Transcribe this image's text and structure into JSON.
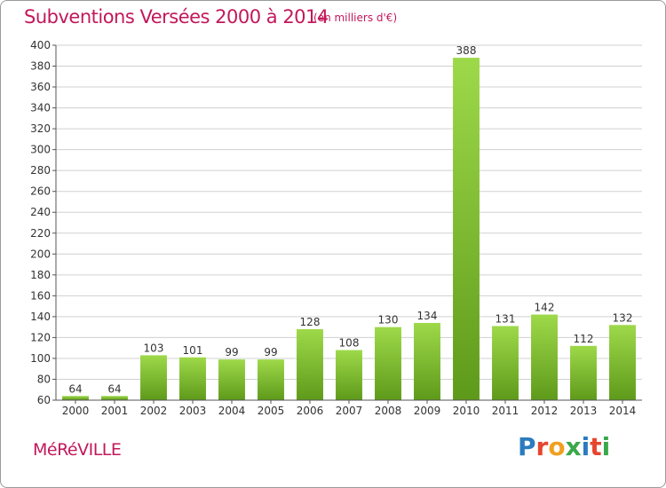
{
  "header": {
    "title": "Subventions Versées 2000 à 2014",
    "unit": "(en milliers d'€)"
  },
  "footer": {
    "commune": "MéRéVILLE",
    "logo_letters": [
      "P",
      "r",
      "o",
      "x",
      "i",
      "t",
      "i"
    ],
    "logo_colors": [
      "#2b7bbf",
      "#e6452e",
      "#f0a020",
      "#3aa84a",
      "#2b7bbf",
      "#e6452e",
      "#3aa84a"
    ]
  },
  "colors": {
    "bar_top": "#9ed94a",
    "bar_bottom": "#5e9a1a",
    "grid": "#d0d0d0",
    "axis": "#555555",
    "accent": "#c2185b"
  },
  "chart_data": {
    "type": "bar",
    "title": "Subventions Versées 2000 à 2014",
    "subtitle": "(en milliers d'€)",
    "categories": [
      "2000",
      "2001",
      "2002",
      "2003",
      "2004",
      "2005",
      "2006",
      "2007",
      "2008",
      "2009",
      "2010",
      "2011",
      "2012",
      "2013",
      "2014"
    ],
    "values": [
      64,
      64,
      103,
      101,
      99,
      99,
      128,
      108,
      130,
      134,
      388,
      131,
      142,
      112,
      132
    ],
    "ylim": [
      60,
      400
    ],
    "yticks": [
      60,
      80,
      100,
      120,
      140,
      160,
      180,
      200,
      220,
      240,
      260,
      280,
      300,
      320,
      340,
      360,
      380,
      400
    ],
    "grid": true,
    "xlabel": "",
    "ylabel": ""
  }
}
